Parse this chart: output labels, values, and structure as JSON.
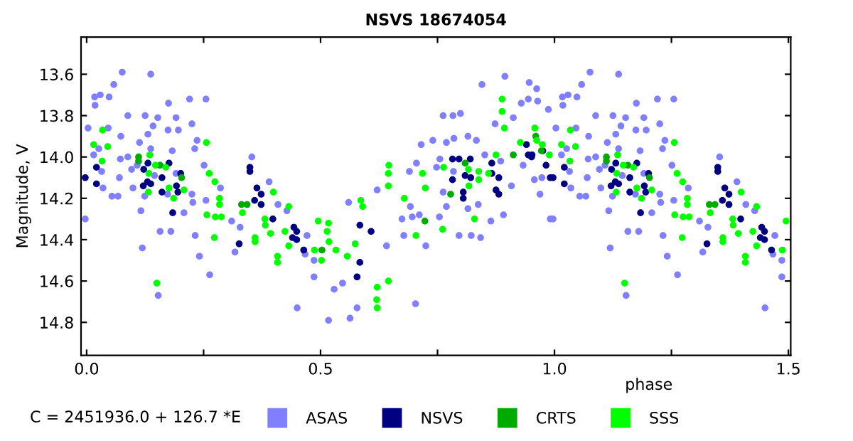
{
  "chart_data": {
    "type": "scatter",
    "title": "NSVS 18674054",
    "xlabel": "phase",
    "ylabel": "Magnitude, V",
    "annotations": [
      "C = 2451936.0 + 126.7 *E"
    ],
    "xlim": [
      -0.012,
      1.505
    ],
    "xticks": [
      {
        "value": 0.0,
        "label": "0.0"
      },
      {
        "value": 0.25,
        "label": null
      },
      {
        "value": 0.5,
        "label": "0.5"
      },
      {
        "value": 0.75,
        "label": null
      },
      {
        "value": 1.0,
        "label": "1.0"
      },
      {
        "value": 1.25,
        "label": null
      },
      {
        "value": 1.5,
        "label": "1.5"
      }
    ],
    "ylim": [
      14.96,
      13.42
    ],
    "yticks": [
      13.6,
      13.8,
      {
        "value": 14.0,
        "label": "14.0"
      },
      14.2,
      14.4,
      14.6,
      14.8
    ],
    "marker": "circle",
    "grid": false,
    "legend": "bottom",
    "series": [
      {
        "name": "ASAS",
        "color": "#8080ff",
        "x": [
          0.076,
          0.137,
          0.058,
          0.048,
          0.018,
          0.175,
          0.255,
          0.088,
          0.125,
          0.152,
          0.191,
          0.003,
          0.046,
          0.142,
          0.225,
          0.174,
          0.073,
          0.131,
          0.236,
          0.113,
          0.026,
          0.137,
          0.231,
          0.015,
          0.088,
          0.108,
          0.096,
          0.251,
          0.353,
          0.032,
          0.07,
          0.145,
          0.191,
          0.286,
          0.099,
          0.054,
          0.067,
          0.173,
          0.225,
          0.227,
          0.255,
          -0.003,
          0.116,
          0.157,
          0.31,
          0.328,
          0.409,
          0.471,
          0.467,
          0.263,
          0.486,
          0.017,
          0.029,
          0.22,
          0.196,
          0.183,
          0.072,
          0.035,
          0.124,
          0.208,
          0.18,
          0.119,
          0.232,
          0.241,
          0.153,
          0.317,
          0.39,
          0.428,
          0.45,
          0.486,
          0.894,
          0.845,
          0.762,
          0.783,
          0.799,
          0.873,
          0.912,
          0.944,
          0.964,
          0.987,
          0.715,
          0.769,
          0.815,
          0.833,
          0.851,
          0.885,
          0.933,
          0.705,
          0.69,
          0.748,
          0.784,
          0.762,
          0.769,
          0.674,
          0.696,
          0.711,
          0.754,
          0.815,
          0.891,
          0.908,
          0.957,
          0.973,
          0.969,
          0.991,
          0.678,
          0.725,
          0.796,
          0.842,
          0.641,
          0.529,
          0.547,
          0.578,
          0.517,
          0.621,
          0.56,
          0.703,
          0.563,
          0.74,
          0.785,
          0.755,
          0.822,
          0.864,
          0.837,
          0.946,
          0.962,
          0.929,
          0.692,
          1.076,
          1.137,
          1.058,
          1.048,
          1.018,
          1.175,
          1.255,
          1.088,
          1.125,
          1.152,
          1.191,
          1.003,
          1.046,
          1.142,
          1.225,
          1.174,
          1.073,
          1.131,
          1.236,
          1.113,
          1.026,
          1.137,
          1.231,
          1.015,
          1.088,
          1.108,
          1.096,
          1.251,
          1.353,
          1.032,
          1.07,
          1.145,
          1.191,
          1.286,
          1.099,
          1.054,
          1.067,
          1.173,
          1.225,
          1.227,
          1.255,
          0.997,
          1.116,
          1.157,
          1.31,
          1.328,
          1.409,
          1.471,
          1.467,
          1.263,
          1.486,
          1.017,
          1.029,
          1.22,
          1.196,
          1.183,
          1.072,
          1.035,
          1.124,
          1.208,
          1.18,
          1.119,
          1.232,
          1.241,
          1.153,
          1.317,
          1.39,
          1.428,
          1.45,
          1.486
        ],
        "values": [
          13.59,
          13.6,
          13.65,
          13.71,
          13.75,
          13.74,
          13.72,
          13.8,
          13.8,
          13.81,
          13.81,
          13.86,
          13.86,
          13.85,
          13.84,
          13.87,
          13.9,
          13.89,
          13.92,
          13.93,
          13.96,
          13.96,
          13.96,
          13.99,
          14.0,
          14.04,
          14.06,
          14.04,
          14.0,
          14.07,
          14.1,
          14.09,
          14.08,
          14.15,
          14.15,
          14.19,
          14.19,
          14.18,
          14.18,
          14.22,
          14.21,
          14.3,
          14.26,
          14.36,
          14.31,
          14.34,
          14.23,
          14.38,
          14.47,
          14.57,
          14.58,
          13.71,
          13.7,
          13.72,
          13.87,
          13.97,
          14.01,
          14.15,
          14.19,
          14.27,
          14.36,
          14.44,
          14.38,
          14.48,
          14.67,
          14.46,
          14.12,
          14.26,
          14.73,
          14.5,
          13.61,
          13.65,
          13.8,
          13.8,
          13.79,
          13.84,
          13.81,
          13.72,
          13.73,
          13.77,
          13.94,
          13.93,
          13.9,
          13.92,
          13.99,
          14.02,
          14.04,
          14.03,
          14.07,
          14.05,
          14.07,
          14.17,
          14.24,
          14.3,
          14.29,
          14.28,
          14.29,
          14.25,
          14.28,
          14.14,
          14.11,
          14.1,
          14.18,
          14.3,
          14.38,
          14.43,
          14.38,
          14.39,
          14.43,
          14.64,
          14.61,
          14.73,
          14.79,
          14.16,
          14.22,
          14.71,
          14.78,
          13.92,
          13.91,
          14.01,
          14.38,
          14.31,
          14.23,
          13.64,
          13.67,
          13.74,
          14.24,
          13.59,
          13.6,
          13.65,
          13.71,
          13.75,
          13.74,
          13.72,
          13.8,
          13.8,
          13.81,
          13.81,
          13.86,
          13.86,
          13.85,
          13.84,
          13.87,
          13.9,
          13.89,
          13.92,
          13.93,
          13.96,
          13.96,
          13.96,
          13.99,
          14.0,
          14.04,
          14.06,
          14.04,
          14.0,
          14.07,
          14.1,
          14.09,
          14.08,
          14.15,
          14.15,
          14.19,
          14.19,
          14.18,
          14.18,
          14.22,
          14.21,
          14.3,
          14.26,
          14.36,
          14.31,
          14.34,
          14.23,
          14.38,
          14.47,
          14.57,
          14.58,
          13.71,
          13.7,
          13.72,
          13.87,
          13.97,
          14.01,
          14.15,
          14.19,
          14.27,
          14.36,
          14.44,
          14.38,
          14.48,
          14.67,
          14.46,
          14.12,
          14.26,
          14.73,
          14.5
        ]
      },
      {
        "name": "NSVS",
        "color": "#000080",
        "x": [
          -0.003,
          0.021,
          0.021,
          0.122,
          0.131,
          0.13,
          0.137,
          0.121,
          0.161,
          0.161,
          0.176,
          0.192,
          0.195,
          0.201,
          0.184,
          0.349,
          0.349,
          0.364,
          0.373,
          0.373,
          0.359,
          0.398,
          0.443,
          0.449,
          0.449,
          0.44,
          0.464,
          0.326,
          0.608,
          0.584,
          0.584,
          0.578,
          0.782,
          0.796,
          0.82,
          0.782,
          0.809,
          0.821,
          0.805,
          0.805,
          0.866,
          0.866,
          0.881,
          0.875,
          0.881,
          0.94,
          0.944,
          0.952,
          0.951,
          0.975,
          0.982,
          0.991,
          0.997,
          1.021,
          1.021,
          1.122,
          1.131,
          1.13,
          1.137,
          1.121,
          1.161,
          1.161,
          1.176,
          1.192,
          1.195,
          1.201,
          1.184,
          1.349,
          1.349,
          1.364,
          1.373,
          1.373,
          1.359,
          1.398,
          1.443,
          1.449,
          1.449,
          1.44,
          1.464,
          1.326
        ],
        "values": [
          14.1,
          14.05,
          14.13,
          14.06,
          14.03,
          14.12,
          14.13,
          14.14,
          14.1,
          14.17,
          14.03,
          14.14,
          14.17,
          14.08,
          14.27,
          14.05,
          14.07,
          14.15,
          14.18,
          14.23,
          14.21,
          14.3,
          14.34,
          14.36,
          14.4,
          14.39,
          14.45,
          14.42,
          14.36,
          14.33,
          14.51,
          14.58,
          14.01,
          14.01,
          14.01,
          14.11,
          14.09,
          14.1,
          14.17,
          14.2,
          14.03,
          14.08,
          14.1,
          14.16,
          14.18,
          13.94,
          13.99,
          13.99,
          14.0,
          13.97,
          14.04,
          14.1,
          14.1,
          14.05,
          14.13,
          14.06,
          14.03,
          14.12,
          14.13,
          14.14,
          14.1,
          14.17,
          14.03,
          14.14,
          14.17,
          14.08,
          14.27,
          14.05,
          14.07,
          14.15,
          14.18,
          14.23,
          14.21,
          14.3,
          14.34,
          14.36,
          14.4,
          14.39,
          14.45,
          14.42
        ]
      },
      {
        "name": "CRTS",
        "color": "#00aa00",
        "x": [
          0.111,
          0.111,
          0.157,
          0.203,
          0.331,
          0.343,
          0.503,
          0.723,
          0.778,
          0.809,
          0.912,
          0.96,
          0.972,
          1.111,
          1.111,
          1.157,
          1.203,
          1.331,
          1.343
        ],
        "values": [
          14.0,
          14.02,
          14.04,
          14.1,
          14.23,
          14.23,
          14.45,
          14.31,
          14.18,
          14.03,
          13.99,
          13.9,
          13.97,
          14.0,
          14.02,
          14.04,
          14.1,
          14.23,
          14.23
        ]
      },
      {
        "name": "SSS",
        "color": "#00ff00",
        "x": [
          0.015,
          0.034,
          0.045,
          0.033,
          0.135,
          0.133,
          0.132,
          0.147,
          0.169,
          0.186,
          0.176,
          0.208,
          0.256,
          0.262,
          0.274,
          0.284,
          0.284,
          0.257,
          0.275,
          0.288,
          0.273,
          0.15,
          0.333,
          0.381,
          0.382,
          0.36,
          0.36,
          0.393,
          0.399,
          0.424,
          0.432,
          0.432,
          0.408,
          0.408,
          0.487,
          0.495,
          0.517,
          0.514,
          0.518,
          0.533,
          0.502,
          0.557,
          0.574,
          0.59,
          0.586,
          0.621,
          0.62,
          0.621,
          0.645,
          0.646,
          0.645,
          0.645,
          0.679,
          0.704,
          0.718,
          0.724,
          0.761,
          0.763,
          0.816,
          0.817,
          0.829,
          0.838,
          0.838,
          0.859,
          0.875,
          0.888,
          0.888,
          0.893,
          0.927,
          0.958,
          0.962,
          0.974,
          0.989,
          1.015,
          1.034,
          1.045,
          1.033,
          1.135,
          1.133,
          1.132,
          1.147,
          1.169,
          1.186,
          1.176,
          1.208,
          1.256,
          1.262,
          1.274,
          1.284,
          1.284,
          1.257,
          1.275,
          1.288,
          1.273,
          1.15,
          1.333,
          1.381,
          1.382,
          1.36,
          1.36,
          1.393,
          1.399,
          1.424,
          1.432,
          1.432,
          1.408,
          1.408,
          1.487,
          1.495
        ],
        "values": [
          13.94,
          13.87,
          13.95,
          14.02,
          13.99,
          14.08,
          14.17,
          14.04,
          14.05,
          14.2,
          14.15,
          14.16,
          13.93,
          14.08,
          14.12,
          14.2,
          14.23,
          14.28,
          14.29,
          14.29,
          14.39,
          14.61,
          14.27,
          14.3,
          14.33,
          14.39,
          14.41,
          14.37,
          14.17,
          14.36,
          14.24,
          14.43,
          14.48,
          14.51,
          14.45,
          14.31,
          14.32,
          14.36,
          14.41,
          14.45,
          14.5,
          14.48,
          14.42,
          14.24,
          14.21,
          14.63,
          14.69,
          14.73,
          14.6,
          14.04,
          14.14,
          14.08,
          14.2,
          14.38,
          14.08,
          14.15,
          14.35,
          14.05,
          14.06,
          14.14,
          14.3,
          14.07,
          14.11,
          14.08,
          13.99,
          13.72,
          13.78,
          13.86,
          13.93,
          13.86,
          13.92,
          13.94,
          13.99,
          13.94,
          13.87,
          13.95,
          14.02,
          13.99,
          14.08,
          14.17,
          14.04,
          14.05,
          14.2,
          14.15,
          14.16,
          13.93,
          14.08,
          14.12,
          14.2,
          14.23,
          14.28,
          14.29,
          14.29,
          14.39,
          14.61,
          14.27,
          14.3,
          14.33,
          14.39,
          14.41,
          14.37,
          14.17,
          14.36,
          14.24,
          14.43,
          14.48,
          14.51,
          14.45,
          14.31
        ]
      }
    ]
  }
}
